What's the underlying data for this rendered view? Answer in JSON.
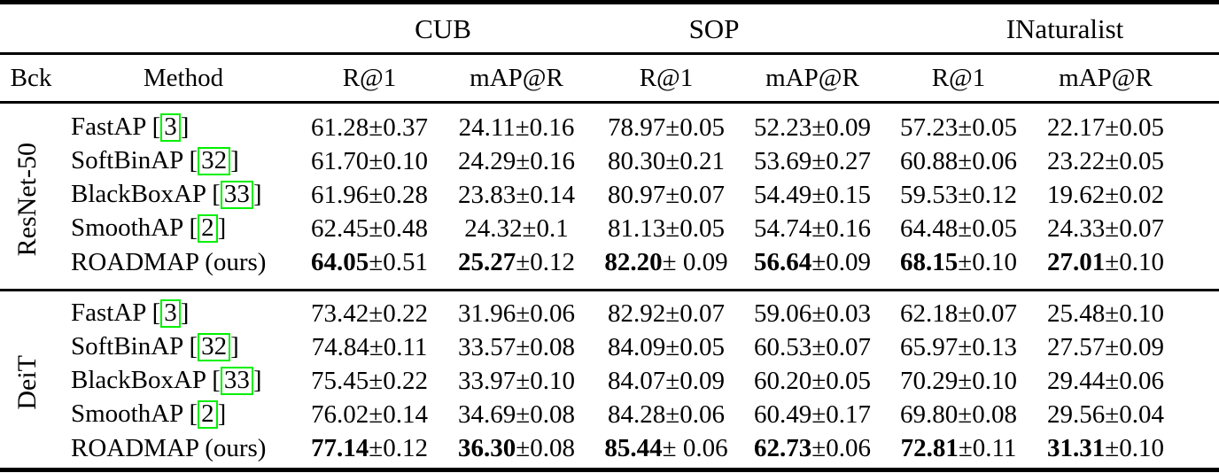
{
  "header": {
    "bck": "Bck",
    "method": "Method",
    "groups": [
      {
        "name": "CUB"
      },
      {
        "name": "SOP"
      },
      {
        "name": "INaturalist"
      }
    ],
    "metrics": [
      "R@1",
      "mAP@R",
      "R@1",
      "mAP@R",
      "R@1",
      "mAP@R"
    ]
  },
  "metric_keys": [
    "cub-r1",
    "cub-mapr",
    "sop-r1",
    "sop-mapr",
    "inat-r1",
    "inat-mapr"
  ],
  "blocks": [
    {
      "backbone": "ResNet-50",
      "rows": [
        {
          "method": "FastAP",
          "cite": "3",
          "values": [
            {
              "main": "61.28",
              "pm": "±0.37",
              "bold": false
            },
            {
              "main": "24.11",
              "pm": "±0.16",
              "bold": false
            },
            {
              "main": "78.97",
              "pm": "±0.05",
              "bold": false
            },
            {
              "main": "52.23",
              "pm": "±0.09",
              "bold": false
            },
            {
              "main": "57.23",
              "pm": "±0.05",
              "bold": false
            },
            {
              "main": "22.17",
              "pm": "±0.05",
              "bold": false
            }
          ]
        },
        {
          "method": "SoftBinAP",
          "cite": "32",
          "values": [
            {
              "main": "61.70",
              "pm": "±0.10",
              "bold": false
            },
            {
              "main": "24.29",
              "pm": "±0.16",
              "bold": false
            },
            {
              "main": "80.30",
              "pm": "±0.21",
              "bold": false
            },
            {
              "main": "53.69",
              "pm": "±0.27",
              "bold": false
            },
            {
              "main": "60.88",
              "pm": "±0.06",
              "bold": false
            },
            {
              "main": "23.22",
              "pm": "±0.05",
              "bold": false
            }
          ]
        },
        {
          "method": "BlackBoxAP",
          "cite": "33",
          "values": [
            {
              "main": "61.96",
              "pm": "±0.28",
              "bold": false
            },
            {
              "main": "23.83",
              "pm": "±0.14",
              "bold": false
            },
            {
              "main": "80.97",
              "pm": "±0.07",
              "bold": false
            },
            {
              "main": "54.49",
              "pm": "±0.15",
              "bold": false
            },
            {
              "main": "59.53",
              "pm": "±0.12",
              "bold": false
            },
            {
              "main": "19.62",
              "pm": "±0.02",
              "bold": false
            }
          ]
        },
        {
          "method": "SmoothAP",
          "cite": "2",
          "values": [
            {
              "main": "62.45",
              "pm": "±0.48",
              "bold": false
            },
            {
              "main": "24.32",
              "pm": "±0.1",
              "bold": false
            },
            {
              "main": "81.13",
              "pm": "±0.05",
              "bold": false
            },
            {
              "main": "54.74",
              "pm": "±0.16",
              "bold": false
            },
            {
              "main": "64.48",
              "pm": "±0.05",
              "bold": false
            },
            {
              "main": "24.33",
              "pm": "±0.07",
              "bold": false
            }
          ]
        },
        {
          "method": "ROADMAP (ours)",
          "cite": null,
          "values": [
            {
              "main": "64.05",
              "pm": "±0.51",
              "bold": true
            },
            {
              "main": "25.27",
              "pm": "±0.12",
              "bold": true
            },
            {
              "main": "82.20",
              "pm": "± 0.09",
              "bold": true
            },
            {
              "main": "56.64",
              "pm": "±0.09",
              "bold": true
            },
            {
              "main": "68.15",
              "pm": "±0.10",
              "bold": true
            },
            {
              "main": "27.01",
              "pm": "±0.10",
              "bold": true
            }
          ]
        }
      ]
    },
    {
      "backbone": "DeiT",
      "rows": [
        {
          "method": "FastAP",
          "cite": "3",
          "values": [
            {
              "main": "73.42",
              "pm": "±0.22",
              "bold": false
            },
            {
              "main": "31.96",
              "pm": "±0.06",
              "bold": false
            },
            {
              "main": "82.92",
              "pm": "±0.07",
              "bold": false
            },
            {
              "main": "59.06",
              "pm": "±0.03",
              "bold": false
            },
            {
              "main": "62.18",
              "pm": "±0.07",
              "bold": false
            },
            {
              "main": "25.48",
              "pm": "±0.10",
              "bold": false
            }
          ]
        },
        {
          "method": "SoftBinAP",
          "cite": "32",
          "values": [
            {
              "main": "74.84",
              "pm": "±0.11",
              "bold": false
            },
            {
              "main": "33.57",
              "pm": "±0.08",
              "bold": false
            },
            {
              "main": "84.09",
              "pm": "±0.05",
              "bold": false
            },
            {
              "main": "60.53",
              "pm": "±0.07",
              "bold": false
            },
            {
              "main": "65.97",
              "pm": "±0.13",
              "bold": false
            },
            {
              "main": "27.57",
              "pm": "±0.09",
              "bold": false
            }
          ]
        },
        {
          "method": "BlackBoxAP",
          "cite": "33",
          "values": [
            {
              "main": "75.45",
              "pm": "±0.22",
              "bold": false
            },
            {
              "main": "33.97",
              "pm": "±0.10",
              "bold": false
            },
            {
              "main": "84.07",
              "pm": "±0.09",
              "bold": false
            },
            {
              "main": "60.20",
              "pm": "±0.05",
              "bold": false
            },
            {
              "main": "70.29",
              "pm": "±0.10",
              "bold": false
            },
            {
              "main": "29.44",
              "pm": "±0.06",
              "bold": false
            }
          ]
        },
        {
          "method": "SmoothAP",
          "cite": "2",
          "values": [
            {
              "main": "76.02",
              "pm": "±0.14",
              "bold": false
            },
            {
              "main": "34.69",
              "pm": "±0.08",
              "bold": false
            },
            {
              "main": "84.28",
              "pm": "±0.06",
              "bold": false
            },
            {
              "main": "60.49",
              "pm": "±0.17",
              "bold": false
            },
            {
              "main": "69.80",
              "pm": "±0.08",
              "bold": false
            },
            {
              "main": "29.56",
              "pm": "±0.04",
              "bold": false
            }
          ]
        },
        {
          "method": "ROADMAP (ours)",
          "cite": null,
          "values": [
            {
              "main": "77.14",
              "pm": "±0.12",
              "bold": true
            },
            {
              "main": "36.30",
              "pm": "±0.08",
              "bold": true
            },
            {
              "main": "85.44",
              "pm": "± 0.06",
              "bold": true
            },
            {
              "main": "62.73",
              "pm": "±0.06",
              "bold": true
            },
            {
              "main": "72.81",
              "pm": "±0.11",
              "bold": true
            },
            {
              "main": "31.31",
              "pm": "±0.10",
              "bold": true
            }
          ]
        }
      ]
    }
  ],
  "colors": {
    "citation_box": "#00f000",
    "text": "#000000",
    "rule": "#000000"
  }
}
